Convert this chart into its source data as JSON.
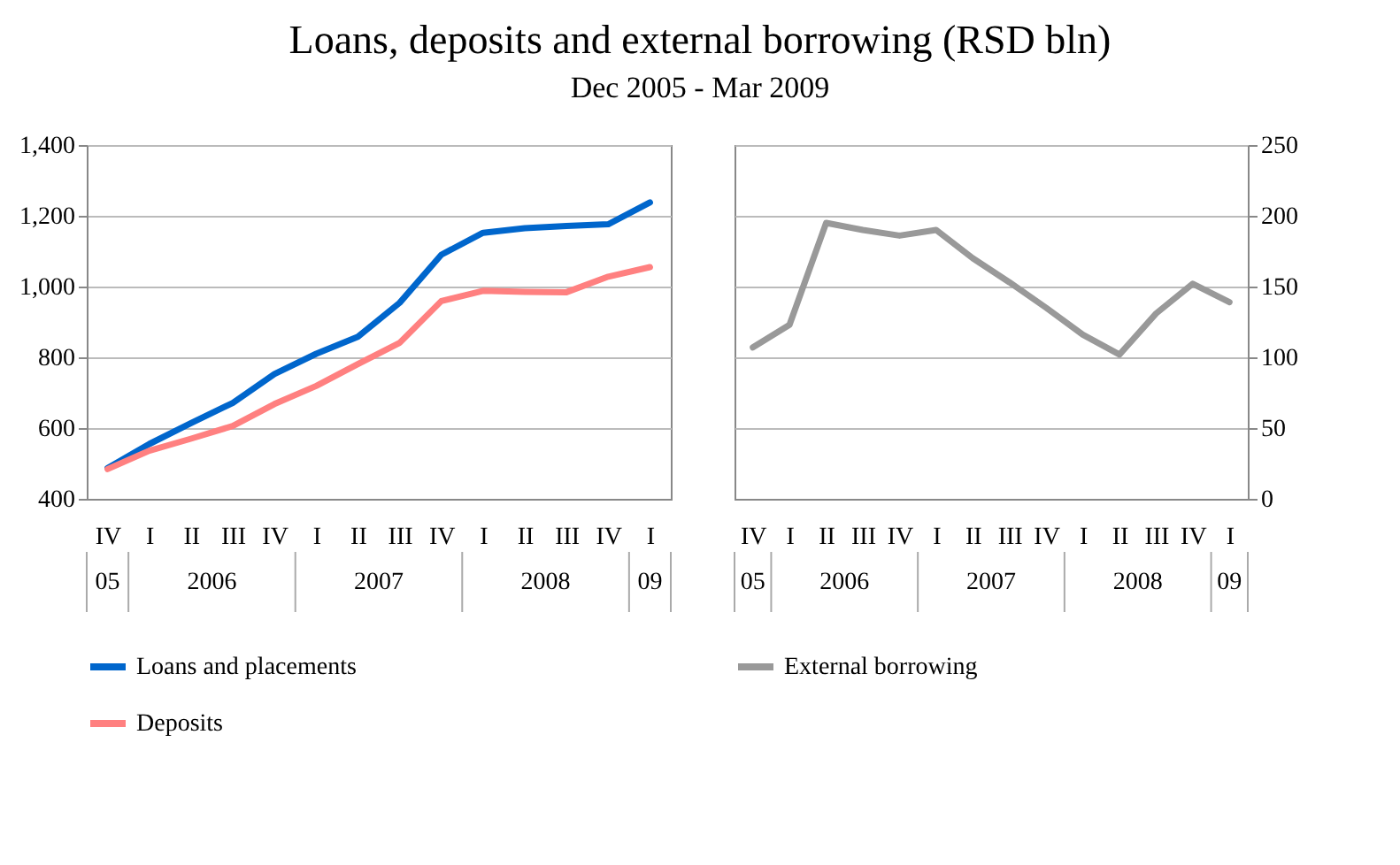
{
  "chart_data": [
    {
      "type": "line",
      "title": "Loans, deposits and external borrowing (RSD bln)",
      "subtitle": "Dec 2005 - Mar 2009",
      "categories": [
        "IV",
        "I",
        "II",
        "III",
        "IV",
        "I",
        "II",
        "III",
        "IV",
        "I",
        "II",
        "III",
        "IV",
        "I"
      ],
      "annotations": [
        "05",
        "2006",
        "2007",
        "2008",
        "09"
      ],
      "series": [
        {
          "name": "Loans and placements",
          "color": "#0066cc",
          "values": [
            487,
            555,
            614,
            671,
            753,
            810,
            858,
            954,
            1090,
            1152,
            1165,
            1171,
            1176,
            1238
          ]
        },
        {
          "name": "Deposits",
          "color": "#ff8080",
          "values": [
            484,
            536,
            570,
            606,
            668,
            719,
            781,
            841,
            959,
            988,
            985,
            984,
            1028,
            1055
          ]
        }
      ],
      "ylim": [
        400,
        1400
      ],
      "yticks": [
        400,
        600,
        800,
        {
          "value": 1000,
          "label": "1,000"
        },
        {
          "value": 1200,
          "label": "1,200"
        },
        {
          "value": 1400,
          "label": "1,400"
        }
      ],
      "grid": "y",
      "legend": "bottom",
      "line_style": "solid"
    },
    {
      "type": "line",
      "categories": [
        "IV",
        "I",
        "II",
        "III",
        "IV",
        "I",
        "II",
        "III",
        "IV",
        "I",
        "II",
        "III",
        "IV",
        "I"
      ],
      "annotations": [
        "05",
        "2006",
        "2007",
        "2008",
        "09"
      ],
      "series": [
        {
          "name": "External borrowing",
          "color": "#999999",
          "values": [
            107,
            123,
            195,
            190,
            186,
            190,
            170,
            153,
            135,
            116,
            102,
            131,
            152,
            139
          ]
        }
      ],
      "ylim": [
        0,
        250
      ],
      "yticks": [
        0,
        50,
        100,
        150,
        200,
        250
      ],
      "grid": "y",
      "legend": "bottom",
      "line_style": "solid"
    }
  ]
}
